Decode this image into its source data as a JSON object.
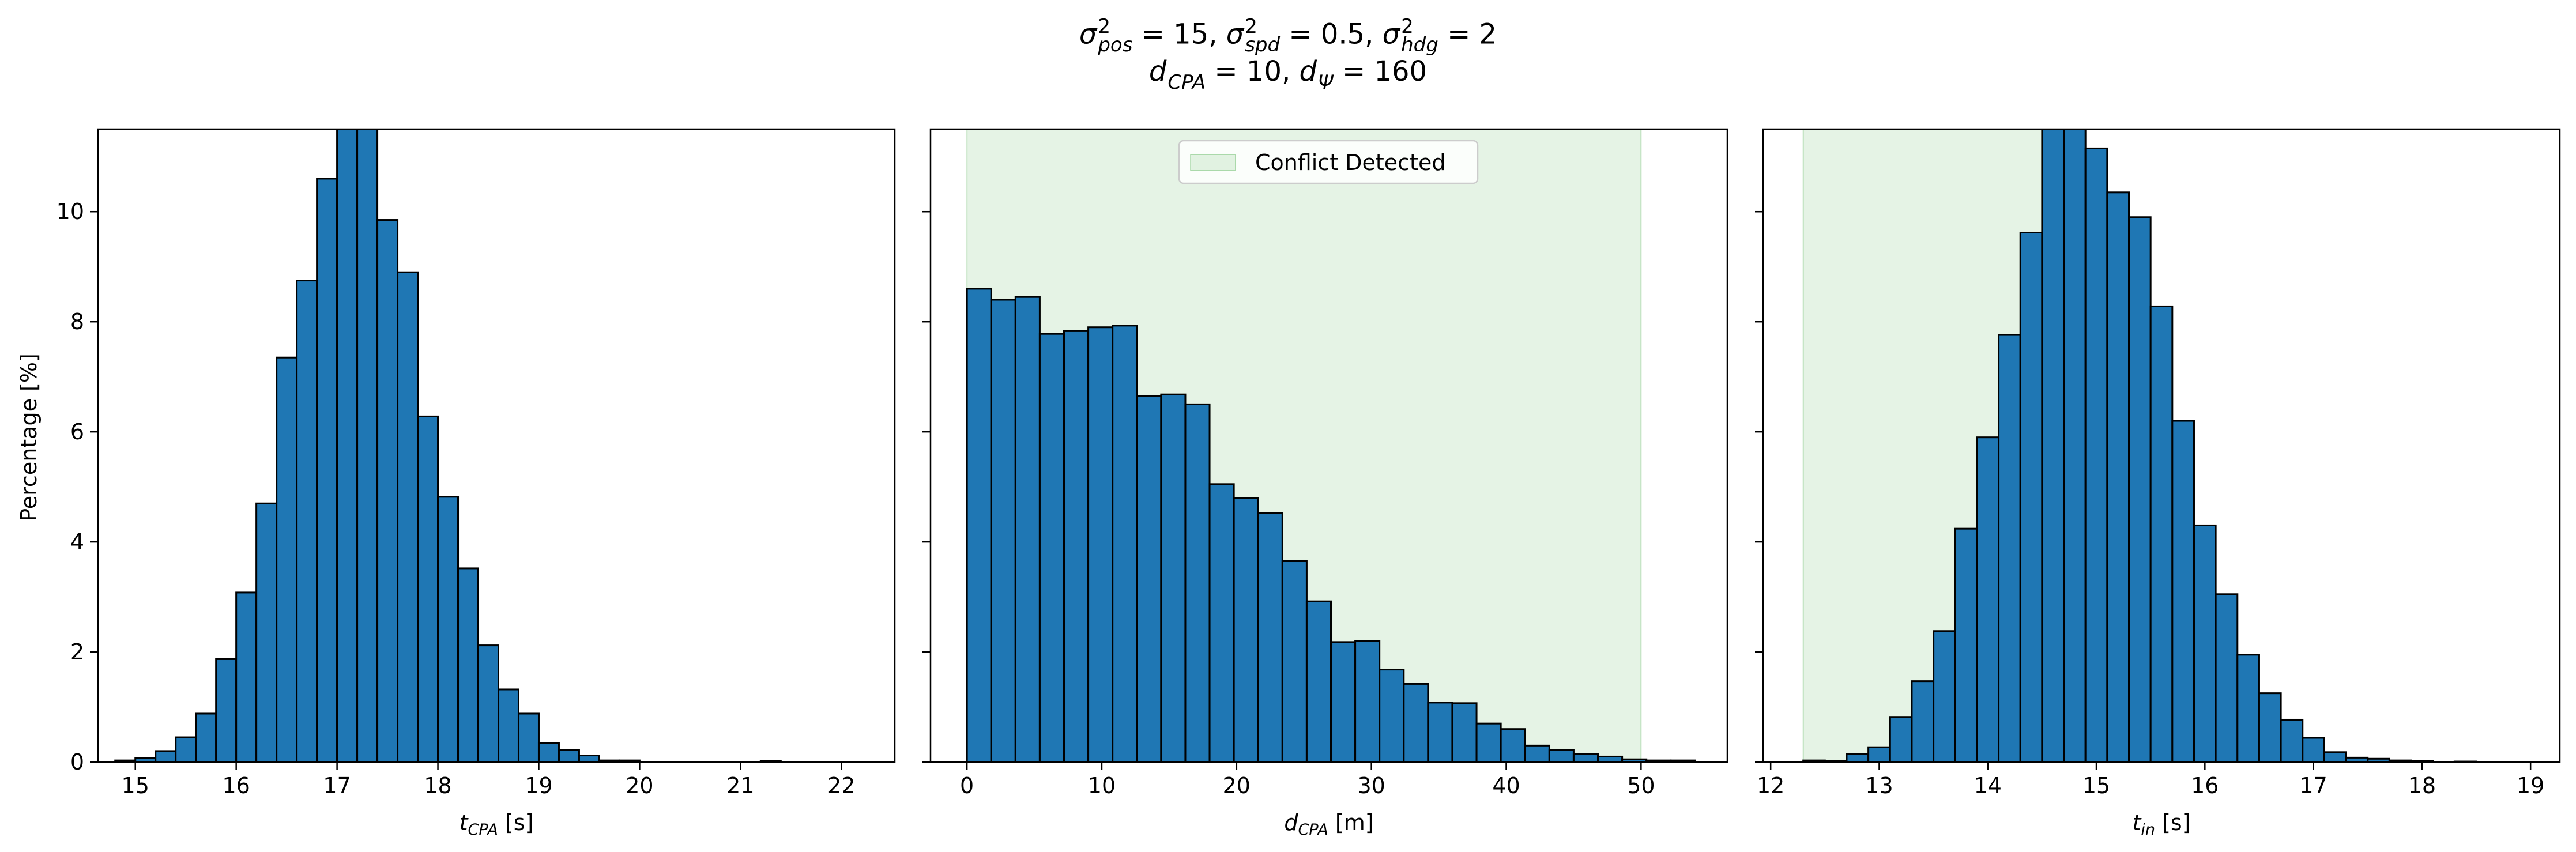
{
  "figure": {
    "title_line1": "σ²pos = 15, σ²spd = 0.5, σ²hdg = 2",
    "title_line2": "dCPA = 10, dΨ = 160",
    "title_parts_line1": [
      {
        "sym": "σ",
        "sup": "2",
        "sub": "pos",
        "rest": " = 15, "
      },
      {
        "sym": "σ",
        "sup": "2",
        "sub": "spd",
        "rest": " = 0.5, "
      },
      {
        "sym": "σ",
        "sup": "2",
        "sub": "hdg",
        "rest": " = 2"
      }
    ],
    "title_parts_line2": [
      {
        "sym": "d",
        "sub": "CPA",
        "rest": " = 10, "
      },
      {
        "sym": "d",
        "sub": "Ψ",
        "rest": " = 160"
      }
    ],
    "ylabel": "Percentage [%]"
  },
  "chart_data": [
    {
      "type": "bar",
      "name": "tcpa-histogram",
      "xlabel": "t_CPA [s]",
      "xlabel_parts": {
        "sym": "t",
        "sub": "CPA",
        "rest": " [s]"
      },
      "ylabel": "Percentage [%]",
      "xlim": [
        14.63,
        22.53
      ],
      "ylim": [
        0,
        11.5
      ],
      "xticks": [
        15,
        16,
        17,
        18,
        19,
        20,
        21,
        22
      ],
      "yticks": [
        0,
        2,
        4,
        6,
        8,
        10
      ],
      "bar_color": "#1f77b4",
      "edge_color": "#000000",
      "bins_start": 14.8,
      "bin_width": 0.2,
      "values": [
        0.03,
        0.07,
        0.2,
        0.45,
        0.88,
        1.87,
        3.08,
        4.7,
        7.35,
        8.75,
        10.6,
        11.62,
        11.6,
        9.85,
        8.9,
        6.28,
        4.82,
        3.52,
        2.12,
        1.32,
        0.88,
        0.35,
        0.22,
        0.12,
        0.03,
        0.03,
        0.0,
        0.0,
        0.0,
        0.0,
        0.0,
        0.0,
        0.02,
        0.0
      ],
      "shaded_region": null
    },
    {
      "type": "bar",
      "name": "dcpa-histogram",
      "xlabel": "d_CPA [m]",
      "xlabel_parts": {
        "sym": "d",
        "sub": "CPA",
        "rest": " [m]"
      },
      "xlim": [
        -2.7,
        56.4
      ],
      "ylim": [
        0,
        11.5
      ],
      "xticks": [
        0,
        10,
        20,
        30,
        40,
        50
      ],
      "yticks": [
        0,
        2,
        4,
        6,
        8,
        10
      ],
      "bar_color": "#1f77b4",
      "edge_color": "#000000",
      "bins_start": 0,
      "bin_width": 1.8,
      "values": [
        8.6,
        8.4,
        8.45,
        7.78,
        7.83,
        7.9,
        7.93,
        6.65,
        6.68,
        6.5,
        5.05,
        4.8,
        4.52,
        3.65,
        2.92,
        2.18,
        2.2,
        1.68,
        1.42,
        1.08,
        1.07,
        0.7,
        0.6,
        0.3,
        0.22,
        0.15,
        0.1,
        0.05,
        0.03,
        0.03
      ],
      "shaded_region": {
        "x0": 0,
        "x1": 50,
        "color": "#2ca02c",
        "opacity": 0.12,
        "label": "Conflict Detected"
      },
      "legend": {
        "label": "Conflict Detected",
        "placement": "top-center"
      }
    },
    {
      "type": "bar",
      "name": "tin-histogram",
      "xlabel": "t_in [s]",
      "xlabel_parts": {
        "sym": "t",
        "sub": "in",
        "rest": " [s]"
      },
      "xlim": [
        11.93,
        19.27
      ],
      "ylim": [
        0,
        11.5
      ],
      "xticks": [
        12,
        13,
        14,
        15,
        16,
        17,
        18,
        19
      ],
      "yticks": [
        0,
        2,
        4,
        6,
        8,
        10
      ],
      "bar_color": "#1f77b4",
      "edge_color": "#000000",
      "bins_start": 12.3,
      "bin_width": 0.2,
      "values": [
        0.03,
        0.02,
        0.15,
        0.27,
        0.82,
        1.47,
        2.38,
        4.24,
        5.9,
        7.76,
        9.62,
        11.6,
        12.9,
        11.15,
        10.35,
        9.9,
        8.28,
        6.2,
        4.3,
        3.05,
        1.95,
        1.25,
        0.77,
        0.44,
        0.18,
        0.08,
        0.06,
        0.03,
        0.02,
        0.0,
        0.01,
        0.0
      ],
      "shaded_region": {
        "x0": 12.3,
        "x1": 14.7,
        "color": "#2ca02c",
        "opacity": 0.12
      }
    }
  ]
}
